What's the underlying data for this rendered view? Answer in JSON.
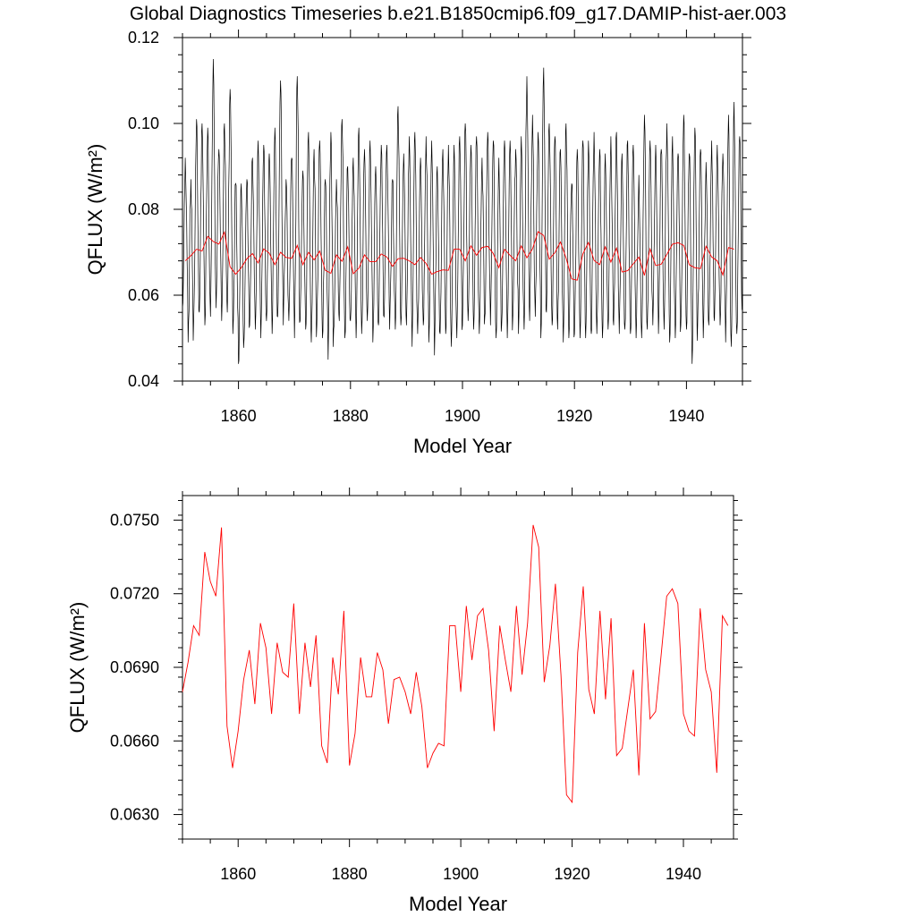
{
  "figure": {
    "title": "Global Diagnostics Timeseries b.e21.B1850cmip6.f09_g17.DAMIP-hist-aer.003"
  },
  "chart_data": [
    {
      "type": "line",
      "panel": "top",
      "xlabel": "Model Year",
      "ylabel": "QFLUX (W/m²)",
      "xlim": [
        1850,
        1950
      ],
      "ylim": [
        0.04,
        0.12
      ],
      "xticks": [
        "1860",
        "1880",
        "1900",
        "1920",
        "1940"
      ],
      "yticks": [
        "0.04",
        "0.06",
        "0.08",
        "0.10",
        "0.12"
      ],
      "grid": false,
      "series": [
        {
          "color": "#000000",
          "monthly_min": [
            0.057,
            0.049,
            0.054,
            0.056,
            0.053,
            0.055,
            0.057,
            0.054,
            0.056,
            0.051,
            0.044,
            0.05,
            0.053,
            0.052,
            0.05,
            0.054,
            0.051,
            0.055,
            0.053,
            0.054,
            0.05,
            0.054,
            0.052,
            0.049,
            0.053,
            0.05,
            0.045,
            0.052,
            0.054,
            0.05,
            0.054,
            0.05,
            0.051,
            0.054,
            0.049,
            0.053,
            0.055,
            0.052,
            0.052,
            0.053,
            0.053,
            0.048,
            0.051,
            0.053,
            0.049,
            0.046,
            0.051,
            0.051,
            0.048,
            0.05,
            0.053,
            0.054,
            0.052,
            0.051,
            0.055,
            0.053,
            0.05,
            0.053,
            0.05,
            0.055,
            0.051,
            0.052,
            0.054,
            0.055,
            0.05,
            0.056,
            0.053,
            0.052,
            0.049,
            0.05,
            0.051,
            0.05,
            0.05,
            0.051,
            0.051,
            0.05,
            0.052,
            0.053,
            0.051,
            0.052,
            0.051,
            0.05,
            0.05,
            0.052,
            0.053,
            0.051,
            0.052,
            0.049,
            0.05,
            0.053,
            0.052,
            0.044,
            0.053,
            0.05,
            0.053,
            0.054,
            0.053,
            0.049,
            0.048,
            0.051
          ],
          "monthly_max": [
            0.092,
            0.087,
            0.101,
            0.1,
            0.099,
            0.115,
            0.094,
            0.1,
            0.108,
            0.086,
            0.086,
            0.087,
            0.092,
            0.096,
            0.095,
            0.093,
            0.099,
            0.11,
            0.087,
            0.092,
            0.111,
            0.089,
            0.098,
            0.094,
            0.096,
            0.087,
            0.098,
            0.087,
            0.101,
            0.09,
            0.092,
            0.099,
            0.094,
            0.096,
            0.09,
            0.095,
            0.095,
            0.087,
            0.104,
            0.093,
            0.097,
            0.098,
            0.092,
            0.097,
            0.096,
            0.09,
            0.094,
            0.095,
            0.095,
            0.097,
            0.1,
            0.095,
            0.097,
            0.092,
            0.098,
            0.096,
            0.092,
            0.096,
            0.096,
            0.094,
            0.097,
            0.111,
            0.102,
            0.098,
            0.113,
            0.1,
            0.097,
            0.094,
            0.1,
            0.086,
            0.094,
            0.096,
            0.096,
            0.098,
            0.094,
            0.093,
            0.097,
            0.098,
            0.093,
            0.096,
            0.095,
            0.088,
            0.102,
            0.096,
            0.095,
            0.094,
            0.1,
            0.097,
            0.093,
            0.102,
            0.093,
            0.099,
            0.094,
            0.091,
            0.096,
            0.095,
            0.093,
            0.102,
            0.105,
            0.097
          ]
        },
        {
          "color": "#ff0000",
          "values": [
            0.068,
            0.0692,
            0.0707,
            0.0703,
            0.0737,
            0.0725,
            0.0719,
            0.0747,
            0.0666,
            0.0649,
            0.0664,
            0.0685,
            0.0697,
            0.0675,
            0.0708,
            0.0698,
            0.0671,
            0.07,
            0.0688,
            0.0686,
            0.0716,
            0.0671,
            0.07,
            0.0682,
            0.0703,
            0.0658,
            0.0651,
            0.0694,
            0.0679,
            0.0713,
            0.065,
            0.0663,
            0.0694,
            0.0678,
            0.0678,
            0.0696,
            0.0689,
            0.0667,
            0.0685,
            0.0686,
            0.068,
            0.0671,
            0.0688,
            0.0674,
            0.0649,
            0.0655,
            0.0659,
            0.0658,
            0.0707,
            0.0707,
            0.068,
            0.0715,
            0.0693,
            0.0711,
            0.0714,
            0.0697,
            0.0664,
            0.0707,
            0.0693,
            0.068,
            0.0715,
            0.0687,
            0.0708,
            0.0748,
            0.0739,
            0.0684,
            0.0699,
            0.0724,
            0.0687,
            0.0638,
            0.0635,
            0.0696,
            0.0723,
            0.0681,
            0.0671,
            0.0713,
            0.0677,
            0.071,
            0.0654,
            0.0657,
            0.0673,
            0.0689,
            0.0646,
            0.0708,
            0.0669,
            0.0672,
            0.0695,
            0.0719,
            0.0722,
            0.0716,
            0.0671,
            0.0664,
            0.0662,
            0.0714,
            0.0689,
            0.068,
            0.0647,
            0.0711,
            0.0707
          ]
        }
      ]
    },
    {
      "type": "line",
      "panel": "bottom",
      "xlabel": "Model Year",
      "ylabel": "QFLUX (W/m²)",
      "xlim": [
        1850,
        1949
      ],
      "ylim": [
        0.062,
        0.076
      ],
      "xticks": [
        "1860",
        "1880",
        "1900",
        "1920",
        "1940"
      ],
      "yticks": [
        "0.0630",
        "0.0660",
        "0.0690",
        "0.0720",
        "0.0750"
      ],
      "grid": false,
      "series": [
        {
          "color": "#ff0000",
          "values": [
            0.068,
            0.0692,
            0.0707,
            0.0703,
            0.0737,
            0.0725,
            0.0719,
            0.0747,
            0.0666,
            0.0649,
            0.0664,
            0.0685,
            0.0697,
            0.0675,
            0.0708,
            0.0698,
            0.0671,
            0.07,
            0.0688,
            0.0686,
            0.0716,
            0.0671,
            0.07,
            0.0682,
            0.0703,
            0.0658,
            0.0651,
            0.0694,
            0.0679,
            0.0713,
            0.065,
            0.0663,
            0.0694,
            0.0678,
            0.0678,
            0.0696,
            0.0689,
            0.0667,
            0.0685,
            0.0686,
            0.068,
            0.0671,
            0.0688,
            0.0674,
            0.0649,
            0.0655,
            0.0659,
            0.0658,
            0.0707,
            0.0707,
            0.068,
            0.0715,
            0.0693,
            0.0711,
            0.0714,
            0.0697,
            0.0664,
            0.0707,
            0.0693,
            0.068,
            0.0715,
            0.0687,
            0.0708,
            0.0748,
            0.0739,
            0.0684,
            0.0699,
            0.0724,
            0.0687,
            0.0638,
            0.0635,
            0.0696,
            0.0723,
            0.0681,
            0.0671,
            0.0713,
            0.0677,
            0.071,
            0.0654,
            0.0657,
            0.0673,
            0.0689,
            0.0646,
            0.0708,
            0.0669,
            0.0672,
            0.0695,
            0.0719,
            0.0722,
            0.0716,
            0.0671,
            0.0664,
            0.0662,
            0.0714,
            0.0689,
            0.068,
            0.0647,
            0.0711,
            0.0707
          ]
        }
      ]
    }
  ]
}
